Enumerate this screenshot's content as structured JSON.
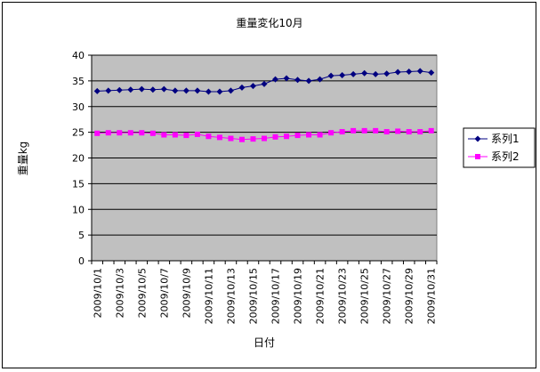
{
  "chart_data": {
    "type": "line",
    "title": "重量変化10月",
    "xlabel": "日付",
    "ylabel": "重量kg",
    "ylim": [
      0,
      40
    ],
    "yticks": [
      0,
      5,
      10,
      15,
      20,
      25,
      30,
      35,
      40
    ],
    "grid": "horizontal",
    "legend_position": "right",
    "plot_background": "#c0c0c0",
    "x": [
      "2009/10/1",
      "2009/10/2",
      "2009/10/3",
      "2009/10/4",
      "2009/10/5",
      "2009/10/6",
      "2009/10/7",
      "2009/10/8",
      "2009/10/9",
      "2009/10/10",
      "2009/10/11",
      "2009/10/12",
      "2009/10/13",
      "2009/10/14",
      "2009/10/15",
      "2009/10/16",
      "2009/10/17",
      "2009/10/18",
      "2009/10/19",
      "2009/10/20",
      "2009/10/21",
      "2009/10/22",
      "2009/10/23",
      "2009/10/24",
      "2009/10/25",
      "2009/10/26",
      "2009/10/27",
      "2009/10/28",
      "2009/10/29",
      "2009/10/30",
      "2009/10/31"
    ],
    "xtick_labels": [
      "2009/10/1",
      "2009/10/3",
      "2009/10/5",
      "2009/10/7",
      "2009/10/9",
      "2009/10/11",
      "2009/10/13",
      "2009/10/15",
      "2009/10/17",
      "2009/10/19",
      "2009/10/21",
      "2009/10/23",
      "2009/10/25",
      "2009/10/27",
      "2009/10/29",
      "2009/10/31"
    ],
    "series": [
      {
        "name": "系列1",
        "color": "#000080",
        "marker": "diamond",
        "values": [
          33.0,
          33.1,
          33.2,
          33.3,
          33.4,
          33.3,
          33.4,
          33.1,
          33.1,
          33.1,
          32.9,
          32.9,
          33.1,
          33.7,
          34.0,
          34.4,
          35.3,
          35.5,
          35.2,
          35.0,
          35.3,
          36.0,
          36.1,
          36.3,
          36.5,
          36.3,
          36.4,
          36.7,
          36.8,
          36.9,
          36.6
        ]
      },
      {
        "name": "系列2",
        "color": "#ff00ff",
        "marker": "square",
        "values": [
          24.8,
          24.9,
          24.9,
          24.9,
          24.9,
          24.8,
          24.5,
          24.5,
          24.4,
          24.6,
          24.2,
          24.0,
          23.8,
          23.6,
          23.7,
          23.8,
          24.1,
          24.2,
          24.4,
          24.5,
          24.5,
          24.9,
          25.1,
          25.3,
          25.3,
          25.3,
          25.1,
          25.2,
          25.1,
          25.1,
          25.3
        ]
      }
    ]
  }
}
